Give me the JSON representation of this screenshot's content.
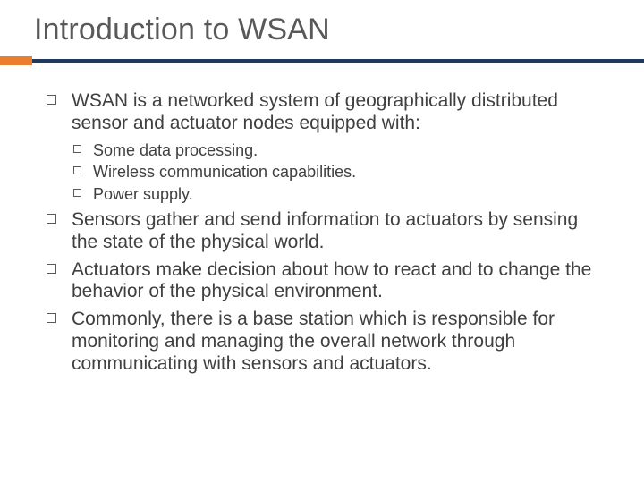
{
  "slide": {
    "title": "Introduction to WSAN",
    "title_color": "#595959",
    "title_fontsize": 34,
    "accent_color": "#e87e2e",
    "divider_color": "#1f3a5f",
    "background_color": "#ffffff",
    "body_text_color": "#404040",
    "level1_fontsize": 21,
    "level2_fontsize": 18,
    "bullets": [
      {
        "text": "WSAN is a networked system of geographically distributed sensor and actuator nodes equipped with:",
        "children": [
          {
            "text": "Some data processing."
          },
          {
            "text": "Wireless communication capabilities."
          },
          {
            "text": "Power supply."
          }
        ]
      },
      {
        "text": "Sensors gather and send information to actuators by sensing the state of the physical world."
      },
      {
        "text": "Actuators make decision about how to react and to change the behavior of the physical environment."
      },
      {
        "text": "Commonly, there is a base station which is responsible for monitoring and managing the overall network through communicating with sensors and actuators."
      }
    ]
  }
}
